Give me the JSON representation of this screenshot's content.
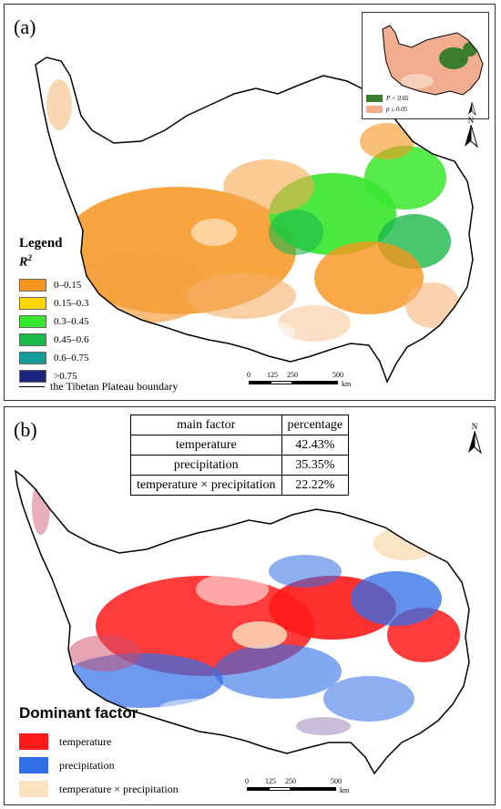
{
  "panel_a": {
    "label": "(a)",
    "legend": {
      "title": "Legend",
      "subtitle_base": "R",
      "subtitle_sup": "2",
      "classes": [
        {
          "label": "0–0.15",
          "color": "#f7941d"
        },
        {
          "label": "0.15–0.3",
          "color": "#ffd700"
        },
        {
          "label": "0.3–0.45",
          "color": "#39e62e"
        },
        {
          "label": "0.45–0.6",
          "color": "#1bb84a"
        },
        {
          "label": "0.6–0.75",
          "color": "#169c9c"
        },
        {
          "label": ">0.75",
          "color": "#1a237e"
        }
      ],
      "boundary_label": "the Tibetan Plateau boundary"
    },
    "inset_legend": [
      {
        "label": "P < 0.05",
        "color": "#3a7d2c"
      },
      {
        "label": "p ≥ 0.05",
        "color": "#f2ad8f"
      }
    ],
    "scale": {
      "ticks": [
        "0",
        "125",
        "250",
        "500"
      ],
      "unit": "km"
    },
    "north_label": "N"
  },
  "panel_b": {
    "label": "(b)",
    "table": {
      "headers": [
        "main factor",
        "percentage"
      ],
      "rows": [
        [
          "temperature",
          "42.43%"
        ],
        [
          "precipitation",
          "35.35%"
        ],
        [
          "temperature × precipitation",
          "22.22%"
        ]
      ]
    },
    "legend": {
      "title": "Dominant factor",
      "classes": [
        {
          "label": "temperature",
          "color": "#ff1a1a"
        },
        {
          "label": "precipitation",
          "color": "#2f6ee8"
        },
        {
          "label": "temperature × precipitation",
          "color": "#fbe3c0"
        }
      ]
    },
    "scale": {
      "ticks": [
        "0",
        "125",
        "250",
        "500"
      ],
      "unit": "km"
    },
    "north_label": "N"
  }
}
